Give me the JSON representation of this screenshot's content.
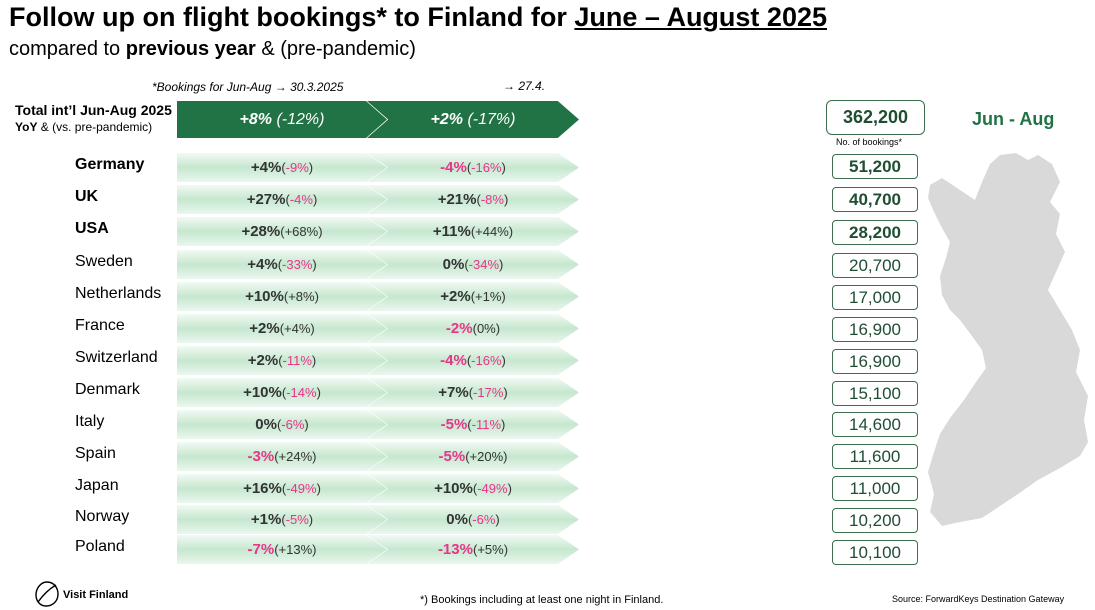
{
  "header": {
    "title_part1": "Follow up on flight bookings* to Finland for ",
    "title_part2": "June – August 2025",
    "subtitle_part1": "compared to ",
    "subtitle_bold": "previous year",
    "subtitle_part2": " & (pre-pandemic)"
  },
  "notes": {
    "col1_note": "*Bookings for Jun-Aug   → 30.3.2025",
    "col2_note": "→ 27.4."
  },
  "total": {
    "label_line1": "Total int’l Jun-Aug 2025",
    "label_line2_bold": "YoY",
    "label_line2_rest": " & (vs. pre-pandemic)",
    "col1_main": "+8%",
    "col1_sub": "(-12%)",
    "col2_main": "+2%",
    "col2_sub": "(-17%)",
    "bookings": "362,200",
    "bookings_label": "No. of bookings*"
  },
  "season_label": "Jun - Aug",
  "chart_data": {
    "type": "table",
    "columns": [
      "30.3.2025",
      "27.4."
    ],
    "rows": [
      {
        "country": "Germany",
        "bold": true,
        "c1_main": "+4%",
        "c1_sub": "-9%",
        "c2_main": "-4%",
        "c2_sub": "-16%",
        "bookings": "51,200"
      },
      {
        "country": "UK",
        "bold": true,
        "c1_main": "+27%",
        "c1_sub": "-4%",
        "c2_main": "+21%",
        "c2_sub": "-8%",
        "bookings": "40,700"
      },
      {
        "country": "USA",
        "bold": true,
        "c1_main": "+28%",
        "c1_sub": "+68%",
        "c2_main": "+11%",
        "c2_sub": "+44%",
        "bookings": "28,200"
      },
      {
        "country": "Sweden",
        "bold": false,
        "c1_main": "+4%",
        "c1_sub": "-33%",
        "c2_main": "0%",
        "c2_sub": "-34%",
        "bookings": "20,700"
      },
      {
        "country": "Netherlands",
        "bold": false,
        "c1_main": "+10%",
        "c1_sub": "+8%",
        "c2_main": "+2%",
        "c2_sub": "+1%",
        "bookings": "17,000"
      },
      {
        "country": "France",
        "bold": false,
        "c1_main": "+2%",
        "c1_sub": "+4%",
        "c2_main": "-2%",
        "c2_sub": "0%",
        "bookings": "16,900"
      },
      {
        "country": "Switzerland",
        "bold": false,
        "c1_main": "+2%",
        "c1_sub": "-11%",
        "c2_main": "-4%",
        "c2_sub": "-16%",
        "bookings": "16,900"
      },
      {
        "country": "Denmark",
        "bold": false,
        "c1_main": "+10%",
        "c1_sub": "-14%",
        "c2_main": "+7%",
        "c2_sub": "-17%",
        "bookings": "15,100"
      },
      {
        "country": "Italy",
        "bold": false,
        "c1_main": "0%",
        "c1_sub": "-6%",
        "c2_main": "-5%",
        "c2_sub": "-11%",
        "bookings": "14,600"
      },
      {
        "country": "Spain",
        "bold": false,
        "c1_main": "-3%",
        "c1_sub": "+24%",
        "c2_main": "-5%",
        "c2_sub": "+20%",
        "bookings": "11,600"
      },
      {
        "country": "Japan",
        "bold": false,
        "c1_main": "+16%",
        "c1_sub": "-49%",
        "c2_main": "+10%",
        "c2_sub": "-49%",
        "bookings": "11,000"
      },
      {
        "country": "Norway",
        "bold": false,
        "c1_main": "+1%",
        "c1_sub": "-5%",
        "c2_main": "0%",
        "c2_sub": "-6%",
        "bookings": "10,200"
      },
      {
        "country": "Poland",
        "bold": false,
        "c1_main": "-7%",
        "c1_sub": "+13%",
        "c2_main": "-13%",
        "c2_sub": "+5%",
        "bookings": "10,100"
      }
    ]
  },
  "colors": {
    "dark_green": "#217346",
    "negative": "#e8358a",
    "map_gray": "#d9d9d9"
  },
  "footer": {
    "logo_text": "Visit Finland",
    "footnote": "*) Bookings including at least one night in Finland.",
    "source": "Source: ForwardKeys Destination Gateway"
  }
}
